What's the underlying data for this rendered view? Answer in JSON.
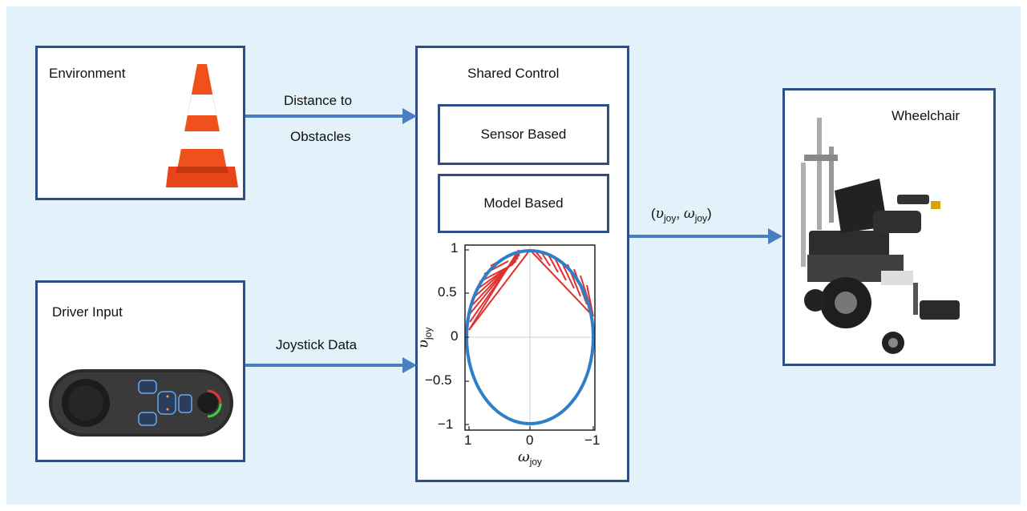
{
  "environment": {
    "title": "Environment"
  },
  "driver_input": {
    "title": "Driver Input"
  },
  "shared_control": {
    "title": "Shared Control",
    "sensor_based": "Sensor Based",
    "model_based": "Model Based"
  },
  "wheelchair": {
    "title": "Wheelchair"
  },
  "arrows": {
    "distance_line1": "Distance to",
    "distance_line2": "Obstacles",
    "joystick": "Joystick Data",
    "output_open": "(",
    "output_v": "υ",
    "output_v_sub": "joy",
    "output_sep": ", ",
    "output_w": "ω",
    "output_w_sub": "joy",
    "output_close": ")"
  },
  "plot": {
    "y_ticks": [
      "1",
      "0.5",
      "0",
      "−0.5",
      "−1"
    ],
    "x_ticks": [
      "1",
      "0",
      "−1"
    ],
    "ylabel": "υ",
    "ylabel_sub": "joy",
    "xlabel": "ω",
    "xlabel_sub": "joy"
  },
  "colors": {
    "background": "#e3f2fa",
    "box_border": "#2e4e86",
    "arrow": "#4a7fbf",
    "ellipse": "#2e7fc6",
    "hatch": "#e03030"
  }
}
